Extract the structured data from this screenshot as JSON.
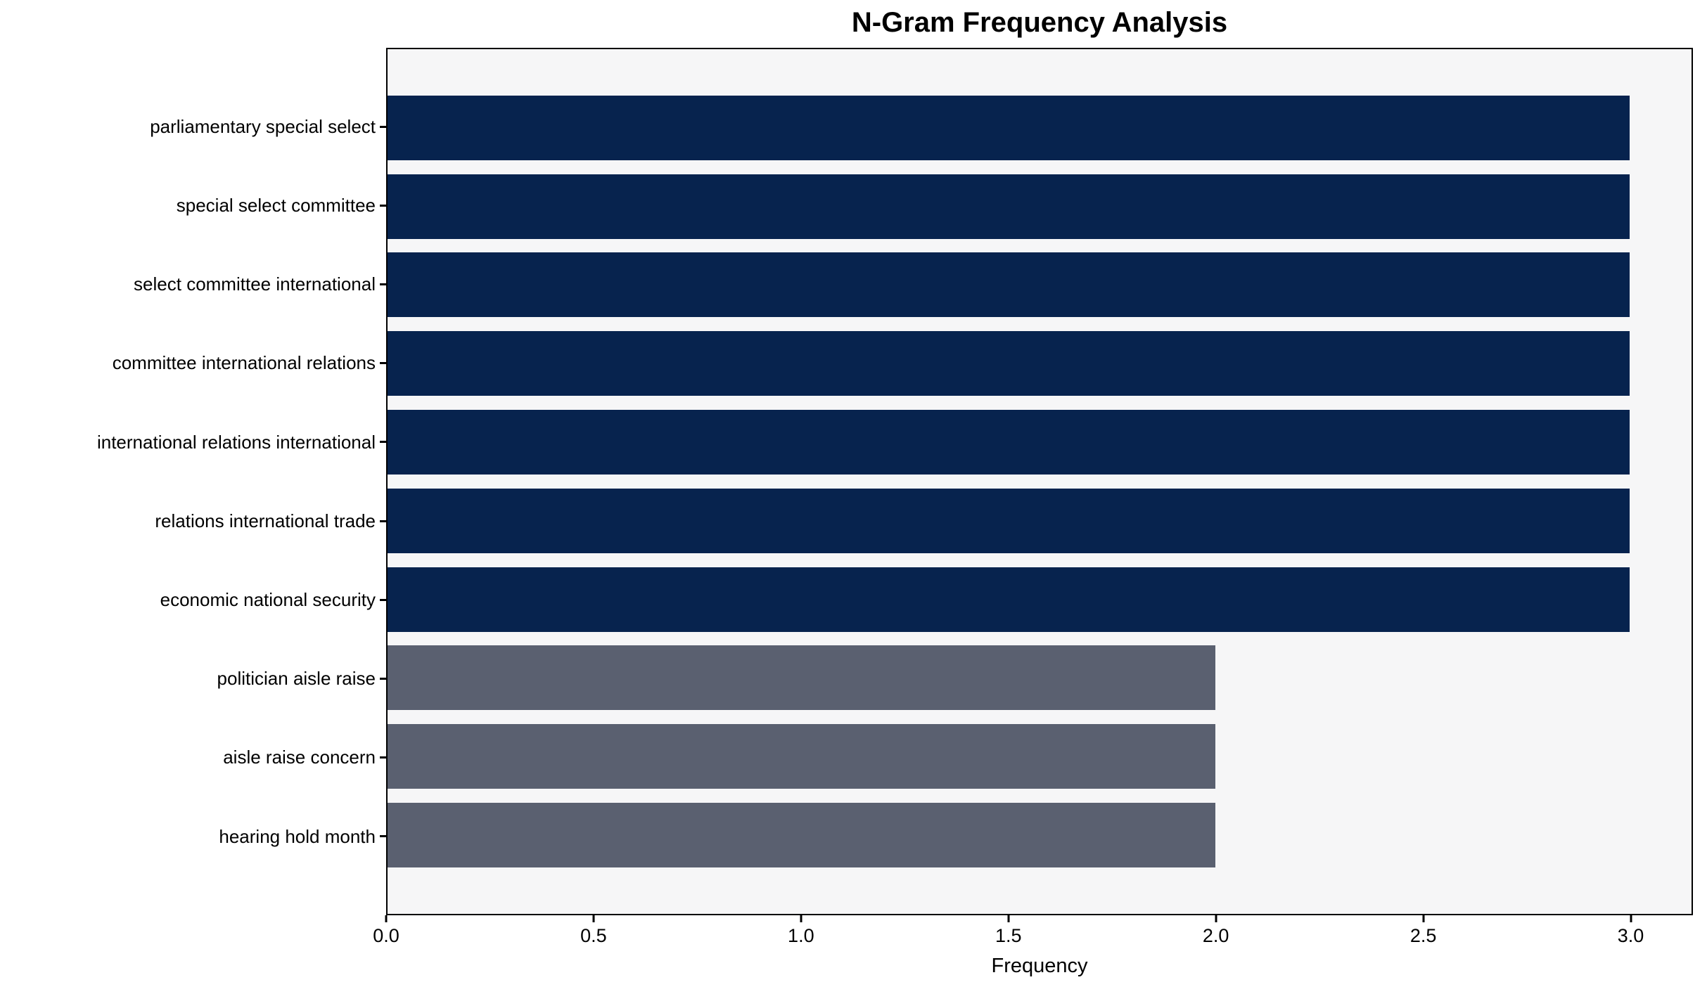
{
  "chart_data": {
    "type": "bar",
    "orientation": "horizontal",
    "title": "N-Gram Frequency Analysis",
    "xlabel": "Frequency",
    "ylabel": "",
    "categories": [
      "parliamentary special select",
      "special select committee",
      "select committee international",
      "committee international relations",
      "international relations international",
      "relations international trade",
      "economic national security",
      "politician aisle raise",
      "aisle raise concern",
      "hearing hold month"
    ],
    "values": [
      3,
      3,
      3,
      3,
      3,
      3,
      3,
      2,
      2,
      2
    ],
    "bar_colors": [
      "#07234e",
      "#07234e",
      "#07234e",
      "#07234e",
      "#07234e",
      "#07234e",
      "#07234e",
      "#5a6070",
      "#5a6070",
      "#5a6070"
    ],
    "xlim": [
      0,
      3.15
    ],
    "xticks": [
      0.0,
      0.5,
      1.0,
      1.5,
      2.0,
      2.5,
      3.0
    ],
    "xtick_labels": [
      "0.0",
      "0.5",
      "1.0",
      "1.5",
      "2.0",
      "2.5",
      "3.0"
    ],
    "grid": false,
    "legend": null,
    "plot_background": "#f6f6f7",
    "figure_background": "#ffffff",
    "spine_color": "#000000",
    "text_color": "#000000"
  }
}
